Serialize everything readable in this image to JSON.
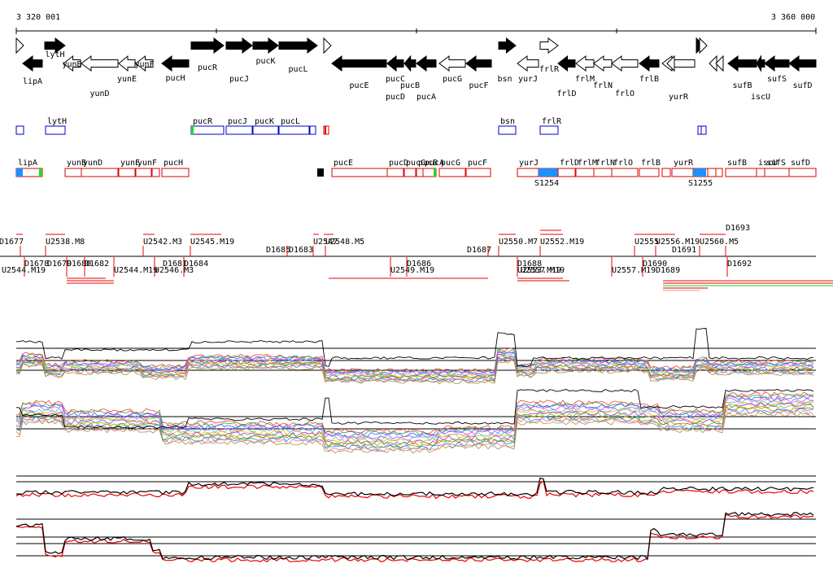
{
  "ruler": {
    "start_label": "3 320 001",
    "end_label": "3 360 000"
  },
  "colors": {
    "gene": "#000000",
    "box_blue": "#0000cc",
    "box_red": "#dd0000",
    "fill_blue": "#1e90ff",
    "fill_green": "#22dd22",
    "signal_red": "#ee0000"
  },
  "genes": [
    {
      "name": "lipA",
      "strand": "-",
      "filled": true
    },
    {
      "name": "lytH",
      "strand": "+",
      "filled": true
    },
    {
      "name": "yunB",
      "strand": "-",
      "filled": false
    },
    {
      "name": "yunD",
      "strand": "-",
      "filled": false
    },
    {
      "name": "yunE",
      "strand": "-",
      "filled": false
    },
    {
      "name": "yunF",
      "strand": "-",
      "filled": false
    },
    {
      "name": "pucH",
      "strand": "-",
      "filled": true
    },
    {
      "name": "pucR",
      "strand": "+",
      "filled": true
    },
    {
      "name": "pucJ",
      "strand": "+",
      "filled": true
    },
    {
      "name": "pucK",
      "strand": "+",
      "filled": true
    },
    {
      "name": "pucL",
      "strand": "+",
      "filled": true
    },
    {
      "name": "pucE",
      "strand": "-",
      "filled": true
    },
    {
      "name": "pucD",
      "strand": "-",
      "filled": true
    },
    {
      "name": "pucC",
      "strand": "-",
      "filled": true
    },
    {
      "name": "pucB",
      "strand": "-",
      "filled": true
    },
    {
      "name": "pucA",
      "strand": "-",
      "filled": true
    },
    {
      "name": "pucG",
      "strand": "-",
      "filled": false
    },
    {
      "name": "pucF",
      "strand": "-",
      "filled": true
    },
    {
      "name": "bsn",
      "strand": "+",
      "filled": true
    },
    {
      "name": "yurJ",
      "strand": "-",
      "filled": false
    },
    {
      "name": "frlR",
      "strand": "+",
      "filled": false
    },
    {
      "name": "frlD",
      "strand": "-",
      "filled": true
    },
    {
      "name": "frlM",
      "strand": "-",
      "filled": false
    },
    {
      "name": "frlN",
      "strand": "-",
      "filled": false
    },
    {
      "name": "frlO",
      "strand": "-",
      "filled": false
    },
    {
      "name": "frlB",
      "strand": "-",
      "filled": true
    },
    {
      "name": "yurR",
      "strand": "-",
      "filled": false
    },
    {
      "name": "sufB",
      "strand": "-",
      "filled": true
    },
    {
      "name": "iscU",
      "strand": "-",
      "filled": true
    },
    {
      "name": "sufS",
      "strand": "-",
      "filled": true
    },
    {
      "name": "sufD",
      "strand": "-",
      "filled": true
    }
  ],
  "operon_labels": [
    "lytH",
    "pucR",
    "pucJ",
    "pucK",
    "pucL",
    "bsn",
    "frlR",
    "lipA",
    "yunB",
    "yunD",
    "yunE",
    "yunF",
    "pucH",
    "pucE",
    "pucD",
    "pucC",
    "pucB",
    "pucA",
    "pucG",
    "pucF",
    "yurJ",
    "frlD",
    "frlM",
    "frlN",
    "frlO",
    "frlB",
    "yurR",
    "sufB",
    "iscU",
    "sufS",
    "sufD"
  ],
  "s_labels": [
    "S1254",
    "S1255"
  ],
  "u_labels": [
    "U2538.M8",
    "U2542.M3",
    "U2545.M19",
    "U2547",
    "U2548.M5",
    "U2550.M7",
    "U2552.M19",
    "U2555",
    "U2556.M19",
    "U2560.M5",
    "U2544.M19",
    "U2546.M3",
    "U2549.M19",
    "U2553.M19",
    "U2557.M19"
  ],
  "d_labels": [
    "D1677",
    "D1679",
    "D1681",
    "D1683",
    "D1685",
    "D1687",
    "D1689",
    "D1691",
    "D1693",
    "D1678",
    "D1680",
    "D1682",
    "D1684",
    "D1686",
    "D1688",
    "D1690",
    "D1692"
  ]
}
